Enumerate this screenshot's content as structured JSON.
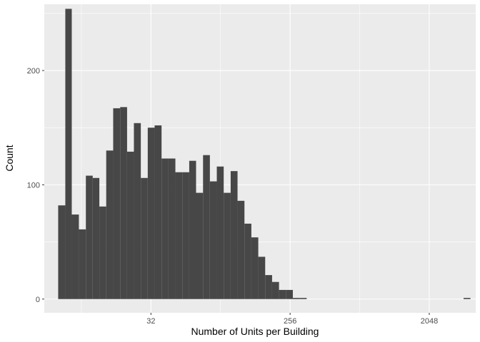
{
  "chart_data": {
    "type": "bar",
    "xlabel": "Number of Units per Building",
    "ylabel": "Count",
    "x_scale": "log2",
    "x_ticks": [
      {
        "value": 32,
        "label": "32"
      },
      {
        "value": 256,
        "label": "256"
      },
      {
        "value": 2048,
        "label": "2048"
      }
    ],
    "y_ticks": [
      {
        "value": 0,
        "label": "0"
      },
      {
        "value": 100,
        "label": "100"
      },
      {
        "value": 200,
        "label": "200"
      }
    ],
    "xlim": [
      6.5,
      4100
    ],
    "ylim": [
      -12,
      258
    ],
    "grid": true,
    "bar_color": "#474747",
    "panel_color": "#EBEBEB",
    "grid_color": "#FFFFFF",
    "bins": [
      {
        "x_start": 8.0,
        "x_end": 8.9,
        "count": 82
      },
      {
        "x_start": 8.9,
        "x_end": 9.8,
        "count": 254
      },
      {
        "x_start": 9.8,
        "x_end": 10.9,
        "count": 74
      },
      {
        "x_start": 10.9,
        "x_end": 12.1,
        "count": 61
      },
      {
        "x_start": 12.1,
        "x_end": 13.4,
        "count": 108
      },
      {
        "x_start": 13.4,
        "x_end": 14.8,
        "count": 106
      },
      {
        "x_start": 14.8,
        "x_end": 16.4,
        "count": 81
      },
      {
        "x_start": 16.4,
        "x_end": 18.2,
        "count": 130
      },
      {
        "x_start": 18.2,
        "x_end": 20.2,
        "count": 167
      },
      {
        "x_start": 20.2,
        "x_end": 22.4,
        "count": 168
      },
      {
        "x_start": 22.4,
        "x_end": 24.8,
        "count": 129
      },
      {
        "x_start": 24.8,
        "x_end": 27.5,
        "count": 154
      },
      {
        "x_start": 27.5,
        "x_end": 30.5,
        "count": 106
      },
      {
        "x_start": 30.5,
        "x_end": 33.8,
        "count": 150
      },
      {
        "x_start": 33.8,
        "x_end": 37.5,
        "count": 152
      },
      {
        "x_start": 37.5,
        "x_end": 41.6,
        "count": 123
      },
      {
        "x_start": 41.6,
        "x_end": 46.1,
        "count": 123
      },
      {
        "x_start": 46.1,
        "x_end": 51.1,
        "count": 111
      },
      {
        "x_start": 51.1,
        "x_end": 56.7,
        "count": 111
      },
      {
        "x_start": 56.7,
        "x_end": 62.8,
        "count": 121
      },
      {
        "x_start": 62.8,
        "x_end": 69.7,
        "count": 93
      },
      {
        "x_start": 69.7,
        "x_end": 77.2,
        "count": 126
      },
      {
        "x_start": 77.2,
        "x_end": 85.6,
        "count": 103
      },
      {
        "x_start": 85.6,
        "x_end": 94.9,
        "count": 116
      },
      {
        "x_start": 94.9,
        "x_end": 105.3,
        "count": 93
      },
      {
        "x_start": 105.3,
        "x_end": 116.7,
        "count": 112
      },
      {
        "x_start": 116.7,
        "x_end": 129.4,
        "count": 86
      },
      {
        "x_start": 129.4,
        "x_end": 143.5,
        "count": 66
      },
      {
        "x_start": 143.5,
        "x_end": 159.1,
        "count": 54
      },
      {
        "x_start": 159.1,
        "x_end": 176.4,
        "count": 37
      },
      {
        "x_start": 176.4,
        "x_end": 195.6,
        "count": 21
      },
      {
        "x_start": 195.6,
        "x_end": 216.9,
        "count": 15
      },
      {
        "x_start": 216.9,
        "x_end": 240.5,
        "count": 8
      },
      {
        "x_start": 240.5,
        "x_end": 266.7,
        "count": 8
      },
      {
        "x_start": 266.7,
        "x_end": 295.7,
        "count": 1
      },
      {
        "x_start": 295.7,
        "x_end": 327.9,
        "count": 1
      },
      {
        "x_start": 3420,
        "x_end": 3790,
        "count": 1
      }
    ]
  }
}
